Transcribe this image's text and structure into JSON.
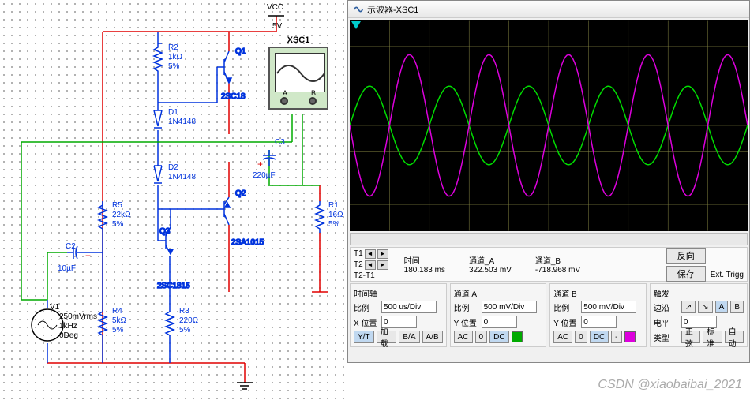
{
  "schematic": {
    "vcc_label": "VCC",
    "vcc_value": "5V",
    "xsc_label": "XSC1",
    "xsc_port_a": "A",
    "xsc_port_b": "B",
    "components": {
      "R1": {
        "name": "R1",
        "value": "16Ω",
        "tol": "5%"
      },
      "R2": {
        "name": "R2",
        "value": "1kΩ",
        "tol": "5%"
      },
      "R3": {
        "name": "R3",
        "value": "220Ω",
        "tol": "5%"
      },
      "R4": {
        "name": "R4",
        "value": "5kΩ",
        "tol": "5%"
      },
      "R5": {
        "name": "R5",
        "value": "22kΩ",
        "tol": "5%"
      },
      "C2": {
        "name": "C2",
        "value": "10µF"
      },
      "C3": {
        "name": "C3",
        "value": "220µF"
      },
      "D1": {
        "name": "D1",
        "value": "1N4148"
      },
      "D2": {
        "name": "D2",
        "value": "1N4148"
      },
      "Q1": {
        "name": "Q1",
        "value": "2SC18"
      },
      "Q2": {
        "name": "Q2",
        "value": "2SA1015"
      },
      "Q3": {
        "name": "Q3",
        "value": "2SC1815"
      },
      "V1": {
        "name": "V1",
        "amp": "250mVrms",
        "freq": "1kHz",
        "phase": "0Deg"
      }
    },
    "wire_colors": {
      "power": "#e00000",
      "signal": "#0033dd",
      "ground": "#000000",
      "probe": "#00aa00"
    }
  },
  "scope": {
    "title": "示波器-XSC1",
    "trace_colors": {
      "chA": "#00dd00",
      "chB": "#dd00dd"
    },
    "background": "#000000",
    "grid_color": "#888844",
    "readout": {
      "labels": {
        "T1": "T1",
        "T2": "T2",
        "T2T1": "T2-T1",
        "time": "时间",
        "chA": "通道_A",
        "chB": "通道_B"
      },
      "T2_time": "180.183 ms",
      "T2_chA": "322.503 mV",
      "T2_chB": "-718.968 mV",
      "btn_invert": "反向",
      "btn_save": "保存",
      "ext_trig": "Ext. Trigg"
    },
    "timebase": {
      "title": "时间轴",
      "scale_label": "比例",
      "scale_value": "500 us/Div",
      "xpos_label": "X 位置",
      "xpos_value": "0",
      "btn_yt": "Y/T",
      "btn_add": "加载",
      "btn_ba": "B/A",
      "btn_ab": "A/B"
    },
    "channelA": {
      "title": "通道 A",
      "scale_label": "比例",
      "scale_value": "500 mV/Div",
      "ypos_label": "Y 位置",
      "ypos_value": "0",
      "btn_ac": "AC",
      "btn_0": "0",
      "btn_dc": "DC",
      "color": "#00aa00"
    },
    "channelB": {
      "title": "通道 B",
      "scale_label": "比例",
      "scale_value": "500 mV/Div",
      "ypos_label": "Y 位置",
      "ypos_value": "0",
      "btn_ac": "AC",
      "btn_0": "0",
      "btn_dc": "DC",
      "btn_minus": "-",
      "color": "#dd00dd"
    },
    "trigger": {
      "title": "触发",
      "edge_label": "边沿",
      "level_label": "电平",
      "level_value": "0",
      "type_label": "类型",
      "btn_sine": "正弦",
      "btn_std": "标准",
      "btn_auto": "自动",
      "btn_A": "A",
      "btn_B": "B"
    },
    "waveform": {
      "chA_amplitude": 50,
      "chB_amplitude": 90,
      "cycles": 5,
      "phase_offset_deg": 180
    }
  },
  "watermark": "CSDN @xiaobaibai_2021"
}
